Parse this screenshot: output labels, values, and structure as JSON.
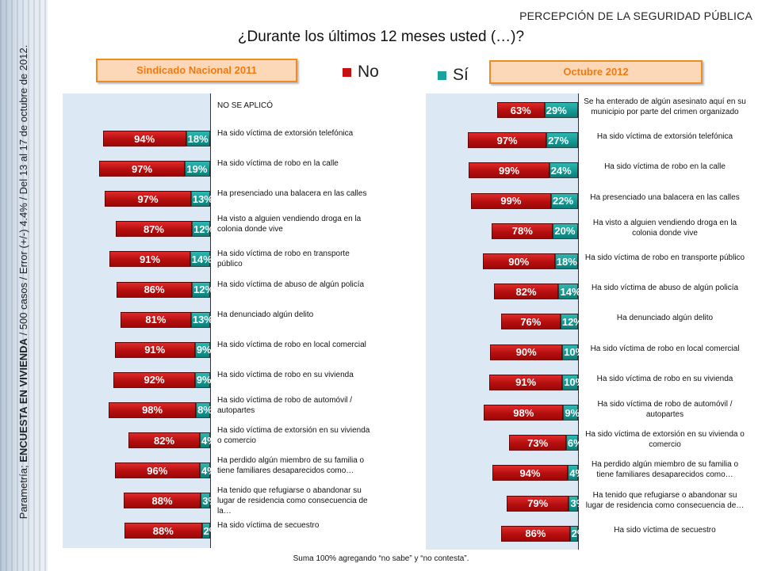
{
  "header": {
    "topic": "PERCEPCIÓN DE LA SEGURIDAD PÚBLICA",
    "question": "¿Durante los últimos 12 meses usted (…)?",
    "side_caption_prefix": "Parametría; ",
    "side_caption_bold": "ENCUESTA EN VIVIENDA",
    "side_caption_rest": " / 500 casos / Error (+/-) 4.4% / Del 13 al 17 de octubre de 2012."
  },
  "footnote": "Suma 100%  agregando “no sabe” y “no contesta”.",
  "legend": {
    "no_label": "No",
    "si_label": "Sí"
  },
  "colors": {
    "no": "#c41212",
    "si": "#1aa39e",
    "tag_border": "#f08a24",
    "tag_fill": "#fdd8b8",
    "tag_text": "#f07a10"
  },
  "chart_data": [
    {
      "type": "bar",
      "title": "Sindicado Nacional 2011",
      "stacked": true,
      "orientation": "horizontal",
      "not_applied_label": "NO SE APLICÓ",
      "categories": [
        "Se ha enterado de algún asesinato aquí en su municipio por parte del crimen organizado",
        "Ha sido víctima de extorsión telefónica",
        "Ha sido víctima de robo en la calle",
        "Ha presenciado una balacera en las calles",
        "Ha visto a alguien vendiendo droga en la colonia donde vive",
        "Ha sido víctima de robo en transporte público",
        "Ha sido víctima de abuso de algún policía",
        "Ha denunciado algún delito",
        "Ha sido víctima de robo en local comercial",
        "Ha sido víctima de robo en su vivienda",
        "Ha sido víctima de robo de automóvil / autopartes",
        "Ha sido víctima de extorsión en su vivienda o comercio",
        "Ha perdido algún miembro de su familia o tiene familiares desaparecidos como…",
        "Ha tenido que refugiarse o abandonar su lugar de residencia como consecuencia de la…",
        "Ha sido víctima de secuestro"
      ],
      "series": [
        {
          "name": "No",
          "values": [
            null,
            94,
            97,
            97,
            87,
            91,
            86,
            81,
            91,
            92,
            98,
            82,
            96,
            88,
            88
          ]
        },
        {
          "name": "Sí",
          "values": [
            null,
            18,
            19,
            13,
            12,
            14,
            12,
            13,
            9,
            9,
            8,
            4,
            4,
            3,
            2
          ]
        }
      ],
      "unit": "%"
    },
    {
      "type": "bar",
      "title": "Octubre 2012",
      "stacked": true,
      "orientation": "horizontal",
      "categories": [
        "Se ha enterado de algún asesinato aquí en su municipio por parte del crimen organizado",
        "Ha sido víctima de extorsión telefónica",
        "Ha sido víctima de robo en la calle",
        "Ha presenciado una balacera en las calles",
        "Ha visto a alguien vendiendo droga en la colonia donde vive",
        "Ha sido víctima de robo en transporte público",
        "Ha sido víctima de abuso de algún policía",
        "Ha denunciado algún delito",
        "Ha sido víctima de robo en local comercial",
        "Ha sido víctima de robo en su vivienda",
        "Ha sido víctima de robo de automóvil / autopartes",
        "Ha sido víctima de extorsión en su vivienda o comercio",
        "Ha perdido algún miembro de su familia o tiene familiares desaparecidos como…",
        "Ha tenido que refugiarse o abandonar su lugar de residencia como consecuencia de…",
        "Ha sido víctima de secuestro"
      ],
      "series": [
        {
          "name": "No",
          "values": [
            63,
            97,
            99,
            99,
            78,
            90,
            82,
            76,
            90,
            91,
            98,
            73,
            94,
            79,
            86
          ]
        },
        {
          "name": "Sí",
          "values": [
            29,
            27,
            24,
            22,
            20,
            18,
            14,
            12,
            10,
            10,
            9,
            6,
            4,
            3,
            2
          ]
        }
      ],
      "unit": "%"
    }
  ]
}
